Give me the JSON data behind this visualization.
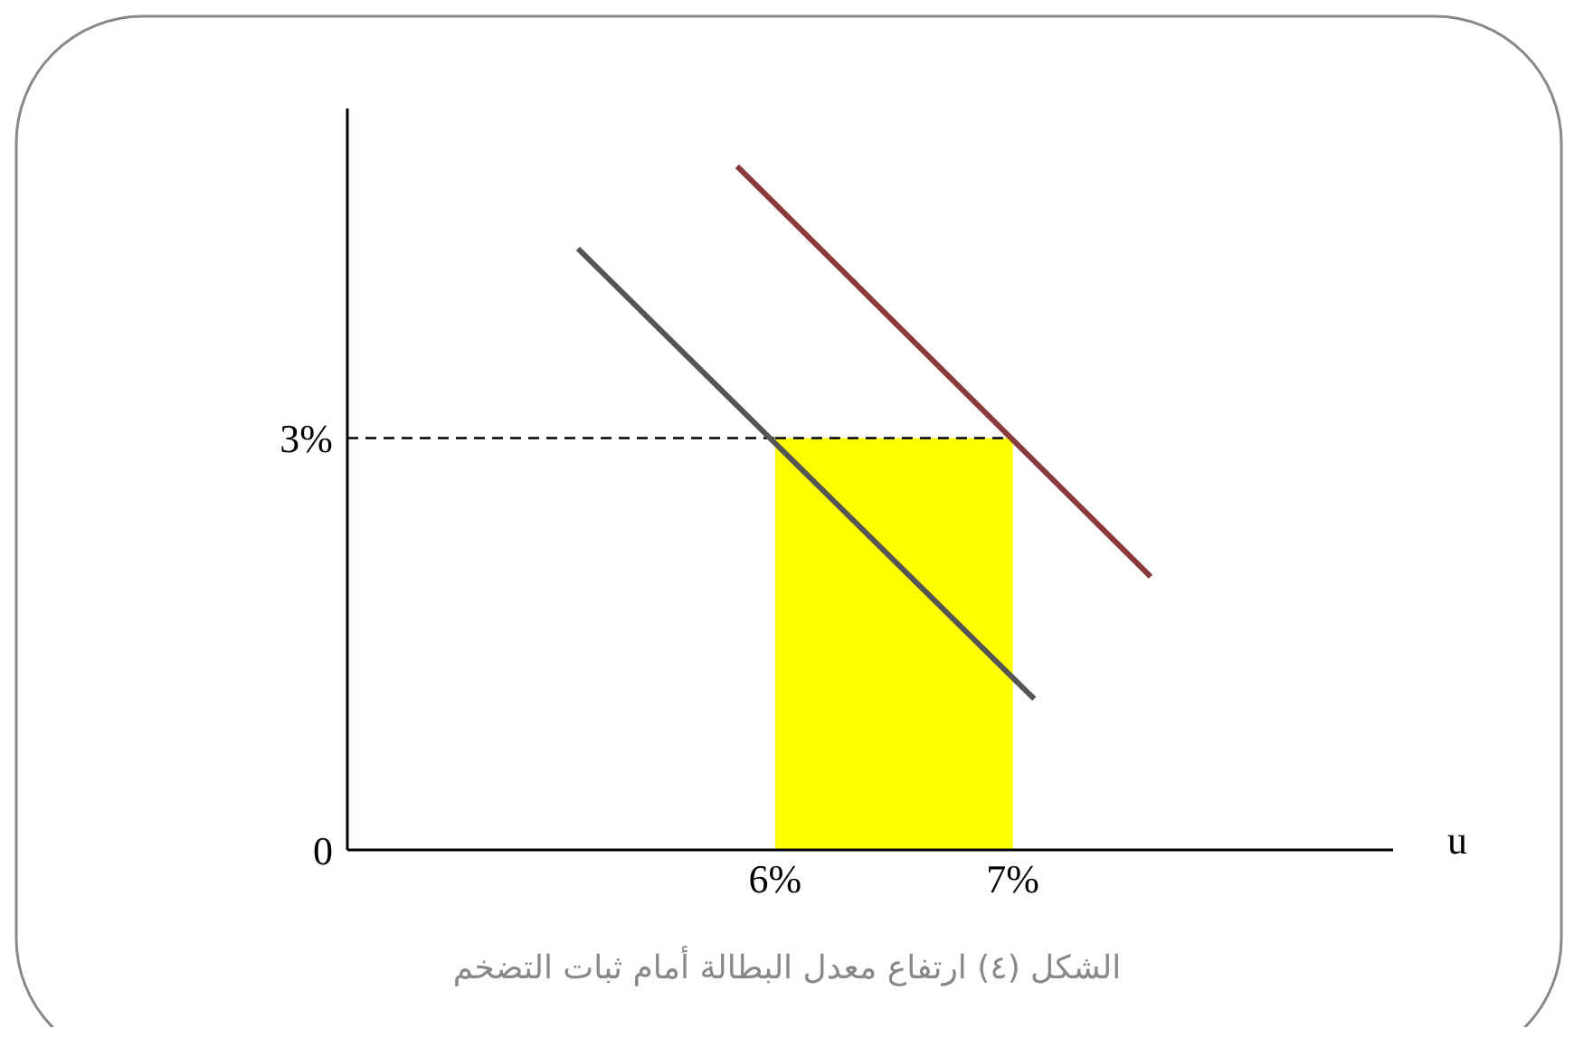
{
  "chart_data": {
    "type": "line",
    "xlabel": "u",
    "annotations": [
      "الشكل (٤) ارتفاع معدل البطالة أمام ثبات التضخم"
    ],
    "xlim": [
      4.2,
      8.6
    ],
    "xticks": [
      {
        "value": 6,
        "label": "6%"
      },
      {
        "value": 7,
        "label": "7%"
      }
    ],
    "ylim": [
      0,
      5.4
    ],
    "yticks": [
      {
        "value": 0,
        "label": "0"
      },
      {
        "value": 3,
        "label": "3%"
      }
    ],
    "grid": false,
    "legend": false,
    "marker": "none",
    "series": [
      {
        "type": "area",
        "color": "#ffff00",
        "x": [
          6,
          7
        ],
        "values": [
          3,
          3
        ],
        "line_style": "dashed"
      },
      {
        "type": "line",
        "color": "#000000",
        "x": [
          4.2,
          6
        ],
        "values": [
          3,
          3
        ],
        "line_style": "dashed"
      },
      {
        "color": "#555555",
        "x": [
          5.17,
          7.09
        ],
        "values": [
          4.38,
          1.1
        ],
        "line_style": "solid"
      },
      {
        "color": "#8b3a3a",
        "x": [
          5.84,
          7.58
        ],
        "values": [
          4.98,
          1.99
        ],
        "line_style": "solid"
      }
    ]
  }
}
